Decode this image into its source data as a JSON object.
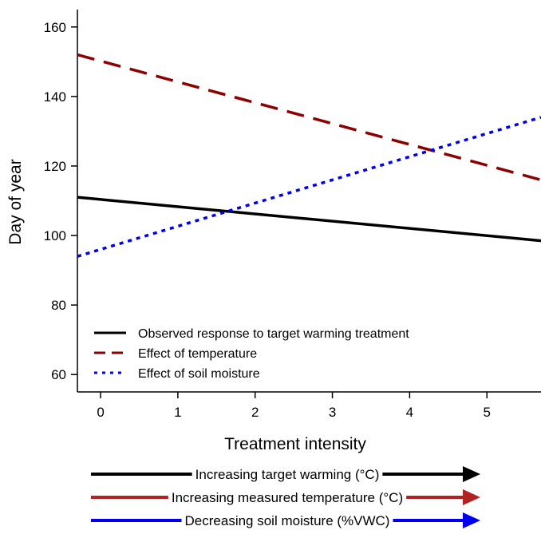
{
  "chart_data": {
    "type": "line",
    "xlabel": "Treatment intensity",
    "ylabel": "Day of year",
    "xlim": [
      -0.3,
      5.7
    ],
    "ylim": [
      55,
      165
    ],
    "x_ticks": [
      0,
      1,
      2,
      3,
      4,
      5
    ],
    "y_ticks": [
      60,
      80,
      100,
      120,
      140,
      160
    ],
    "grid": false,
    "legend_position": "bottom-left",
    "series": [
      {
        "name": "Observed response to target warming treatment",
        "color": "#000000",
        "dash": "solid",
        "x": [
          -0.3,
          5.7
        ],
        "y": [
          111,
          98.5
        ]
      },
      {
        "name": "Effect of temperature",
        "color": "#8b0000",
        "dash": "dashed",
        "x": [
          -0.3,
          5.7
        ],
        "y": [
          152,
          116
        ]
      },
      {
        "name": "Effect of soil moisture",
        "color": "#0000ee",
        "dash": "dotted",
        "x": [
          -0.3,
          5.7
        ],
        "y": [
          94,
          134
        ]
      }
    ],
    "arrows": [
      {
        "label": "Increasing target warming (°C)",
        "color": "#000000"
      },
      {
        "label": "Increasing measured temperature (°C)",
        "color": "#b22222"
      },
      {
        "label": "Decreasing soil moisture (%VWC)",
        "color": "#0000ee"
      }
    ]
  }
}
